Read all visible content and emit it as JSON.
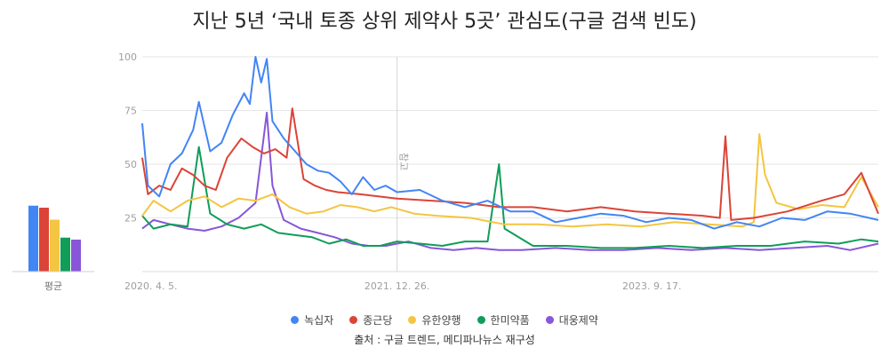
{
  "title": "지난 5년 ‘국내 토종 상위 제약사 5곳’ 관심도(구글 검색 빈도)",
  "source": "출처 : 구글 트렌드, 메디파나뉴스 재구성",
  "avg_label": "평균",
  "note_label": "참고",
  "colors": {
    "녹십자": "#4285f4",
    "종근당": "#db4437",
    "유한양행": "#f4c542",
    "한미약품": "#0f9d58",
    "대웅제약": "#8856d8"
  },
  "chart_data": {
    "type": "line",
    "ylim": [
      0,
      100
    ],
    "y_ticks": [
      25,
      50,
      75,
      100
    ],
    "x_start": "2020-04-05",
    "x_end": "2025-03-30",
    "x_ticks": [
      "2020. 4. 5.",
      "2021. 12. 26.",
      "2023. 9. 17."
    ],
    "annotation_date": "2021-12-26",
    "averages": [
      {
        "name": "녹십자",
        "value": 33
      },
      {
        "name": "종근당",
        "value": 32
      },
      {
        "name": "유한양행",
        "value": 26
      },
      {
        "name": "한미약품",
        "value": 17
      },
      {
        "name": "대웅제약",
        "value": 16
      }
    ],
    "series": [
      {
        "name": "녹십자",
        "points": [
          [
            "2020-04-05",
            69
          ],
          [
            "2020-04-19",
            40
          ],
          [
            "2020-05-17",
            35
          ],
          [
            "2020-06-14",
            50
          ],
          [
            "2020-07-12",
            55
          ],
          [
            "2020-08-09",
            66
          ],
          [
            "2020-08-23",
            79
          ],
          [
            "2020-09-20",
            56
          ],
          [
            "2020-10-18",
            60
          ],
          [
            "2020-11-15",
            73
          ],
          [
            "2020-12-13",
            83
          ],
          [
            "2020-12-27",
            78
          ],
          [
            "2021-01-10",
            100
          ],
          [
            "2021-01-24",
            88
          ],
          [
            "2021-02-07",
            99
          ],
          [
            "2021-02-21",
            70
          ],
          [
            "2021-03-21",
            62
          ],
          [
            "2021-04-18",
            56
          ],
          [
            "2021-05-16",
            50
          ],
          [
            "2021-06-13",
            47
          ],
          [
            "2021-07-11",
            46
          ],
          [
            "2021-08-08",
            42
          ],
          [
            "2021-09-05",
            36
          ],
          [
            "2021-10-03",
            44
          ],
          [
            "2021-10-31",
            38
          ],
          [
            "2021-11-28",
            40
          ],
          [
            "2021-12-26",
            37
          ],
          [
            "2022-02-20",
            38
          ],
          [
            "2022-04-17",
            33
          ],
          [
            "2022-06-12",
            30
          ],
          [
            "2022-08-07",
            33
          ],
          [
            "2022-10-02",
            28
          ],
          [
            "2022-11-27",
            28
          ],
          [
            "2023-01-22",
            23
          ],
          [
            "2023-03-19",
            25
          ],
          [
            "2023-05-14",
            27
          ],
          [
            "2023-07-09",
            26
          ],
          [
            "2023-09-03",
            23
          ],
          [
            "2023-10-29",
            25
          ],
          [
            "2023-12-24",
            24
          ],
          [
            "2024-02-18",
            20
          ],
          [
            "2024-04-14",
            23
          ],
          [
            "2024-06-09",
            21
          ],
          [
            "2024-08-04",
            25
          ],
          [
            "2024-09-29",
            24
          ],
          [
            "2024-11-24",
            28
          ],
          [
            "2025-01-19",
            27
          ],
          [
            "2025-03-30",
            24
          ]
        ]
      },
      {
        "name": "종근당",
        "points": [
          [
            "2020-04-05",
            53
          ],
          [
            "2020-04-19",
            36
          ],
          [
            "2020-05-17",
            40
          ],
          [
            "2020-06-14",
            38
          ],
          [
            "2020-07-12",
            48
          ],
          [
            "2020-08-09",
            45
          ],
          [
            "2020-09-06",
            40
          ],
          [
            "2020-10-04",
            38
          ],
          [
            "2020-11-01",
            53
          ],
          [
            "2020-12-06",
            62
          ],
          [
            "2021-01-03",
            58
          ],
          [
            "2021-01-31",
            55
          ],
          [
            "2021-02-28",
            57
          ],
          [
            "2021-03-28",
            53
          ],
          [
            "2021-04-11",
            76
          ],
          [
            "2021-05-09",
            43
          ],
          [
            "2021-06-06",
            40
          ],
          [
            "2021-07-04",
            38
          ],
          [
            "2021-08-01",
            37
          ],
          [
            "2021-09-26",
            36
          ],
          [
            "2021-12-26",
            34
          ],
          [
            "2022-03-20",
            33
          ],
          [
            "2022-06-12",
            32
          ],
          [
            "2022-09-04",
            30
          ],
          [
            "2022-11-27",
            30
          ],
          [
            "2023-02-19",
            28
          ],
          [
            "2023-05-14",
            30
          ],
          [
            "2023-08-06",
            28
          ],
          [
            "2023-10-29",
            27
          ],
          [
            "2024-01-21",
            26
          ],
          [
            "2024-03-03",
            25
          ],
          [
            "2024-03-17",
            63
          ],
          [
            "2024-03-31",
            24
          ],
          [
            "2024-05-26",
            25
          ],
          [
            "2024-08-18",
            28
          ],
          [
            "2024-11-10",
            33
          ],
          [
            "2025-01-05",
            36
          ],
          [
            "2025-02-16",
            46
          ],
          [
            "2025-03-30",
            27
          ]
        ]
      },
      {
        "name": "유한양행",
        "points": [
          [
            "2020-04-05",
            26
          ],
          [
            "2020-05-03",
            33
          ],
          [
            "2020-06-14",
            28
          ],
          [
            "2020-07-26",
            33
          ],
          [
            "2020-09-06",
            35
          ],
          [
            "2020-10-18",
            30
          ],
          [
            "2020-11-29",
            34
          ],
          [
            "2021-01-10",
            33
          ],
          [
            "2021-02-21",
            36
          ],
          [
            "2021-04-04",
            30
          ],
          [
            "2021-05-16",
            27
          ],
          [
            "2021-06-27",
            28
          ],
          [
            "2021-08-08",
            31
          ],
          [
            "2021-09-19",
            30
          ],
          [
            "2021-10-31",
            28
          ],
          [
            "2021-12-12",
            30
          ],
          [
            "2022-02-06",
            27
          ],
          [
            "2022-04-03",
            26
          ],
          [
            "2022-06-26",
            25
          ],
          [
            "2022-09-18",
            22
          ],
          [
            "2022-12-11",
            22
          ],
          [
            "2023-03-05",
            21
          ],
          [
            "2023-05-28",
            22
          ],
          [
            "2023-08-20",
            21
          ],
          [
            "2023-11-12",
            23
          ],
          [
            "2024-02-04",
            22
          ],
          [
            "2024-04-28",
            21
          ],
          [
            "2024-05-26",
            23
          ],
          [
            "2024-06-09",
            64
          ],
          [
            "2024-06-23",
            45
          ],
          [
            "2024-07-21",
            32
          ],
          [
            "2024-09-15",
            29
          ],
          [
            "2024-11-10",
            31
          ],
          [
            "2025-01-05",
            30
          ],
          [
            "2025-02-16",
            44
          ],
          [
            "2025-03-30",
            30
          ]
        ]
      },
      {
        "name": "한미약품",
        "points": [
          [
            "2020-04-05",
            26
          ],
          [
            "2020-05-03",
            20
          ],
          [
            "2020-06-14",
            22
          ],
          [
            "2020-07-26",
            21
          ],
          [
            "2020-08-23",
            58
          ],
          [
            "2020-09-20",
            27
          ],
          [
            "2020-11-01",
            22
          ],
          [
            "2020-12-13",
            20
          ],
          [
            "2021-01-24",
            22
          ],
          [
            "2021-03-07",
            18
          ],
          [
            "2021-04-18",
            17
          ],
          [
            "2021-05-30",
            16
          ],
          [
            "2021-07-11",
            13
          ],
          [
            "2021-08-22",
            15
          ],
          [
            "2021-10-03",
            12
          ],
          [
            "2021-11-14",
            12
          ],
          [
            "2021-12-26",
            14
          ],
          [
            "2022-02-20",
            13
          ],
          [
            "2022-04-17",
            12
          ],
          [
            "2022-06-12",
            14
          ],
          [
            "2022-08-07",
            14
          ],
          [
            "2022-09-04",
            50
          ],
          [
            "2022-09-18",
            20
          ],
          [
            "2022-11-27",
            12
          ],
          [
            "2023-02-19",
            12
          ],
          [
            "2023-05-14",
            11
          ],
          [
            "2023-08-06",
            11
          ],
          [
            "2023-10-29",
            12
          ],
          [
            "2024-01-21",
            11
          ],
          [
            "2024-04-14",
            12
          ],
          [
            "2024-07-07",
            12
          ],
          [
            "2024-09-29",
            14
          ],
          [
            "2024-12-22",
            13
          ],
          [
            "2025-02-16",
            15
          ],
          [
            "2025-03-30",
            14
          ]
        ]
      },
      {
        "name": "대웅제약",
        "points": [
          [
            "2020-04-05",
            20
          ],
          [
            "2020-05-03",
            24
          ],
          [
            "2020-06-14",
            22
          ],
          [
            "2020-07-26",
            20
          ],
          [
            "2020-09-06",
            19
          ],
          [
            "2020-10-18",
            21
          ],
          [
            "2020-11-29",
            25
          ],
          [
            "2021-01-10",
            32
          ],
          [
            "2021-02-07",
            74
          ],
          [
            "2021-02-21",
            40
          ],
          [
            "2021-03-21",
            24
          ],
          [
            "2021-05-02",
            20
          ],
          [
            "2021-06-13",
            18
          ],
          [
            "2021-07-25",
            16
          ],
          [
            "2021-09-05",
            13
          ],
          [
            "2021-10-17",
            12
          ],
          [
            "2021-11-28",
            12
          ],
          [
            "2022-01-23",
            14
          ],
          [
            "2022-03-20",
            11
          ],
          [
            "2022-05-15",
            10
          ],
          [
            "2022-07-10",
            11
          ],
          [
            "2022-09-04",
            10
          ],
          [
            "2022-10-30",
            10
          ],
          [
            "2023-01-22",
            11
          ],
          [
            "2023-04-16",
            10
          ],
          [
            "2023-07-09",
            10
          ],
          [
            "2023-10-01",
            11
          ],
          [
            "2023-12-24",
            10
          ],
          [
            "2024-03-17",
            11
          ],
          [
            "2024-06-09",
            10
          ],
          [
            "2024-09-01",
            11
          ],
          [
            "2024-11-24",
            12
          ],
          [
            "2025-01-19",
            10
          ],
          [
            "2025-03-30",
            13
          ]
        ]
      }
    ]
  }
}
